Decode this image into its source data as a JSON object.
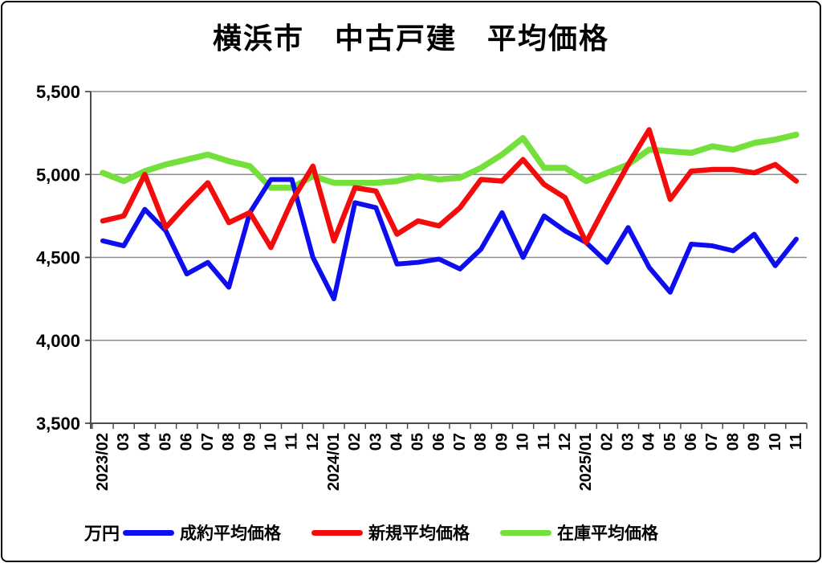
{
  "chart_data": {
    "type": "line",
    "title": "横浜市　中古戸建　平均価格",
    "unit_label": "万円",
    "legend_position": "bottom",
    "grid": true,
    "y_axis": {
      "min": 3500,
      "max": 5500,
      "ticks": [
        {
          "label": "5,500",
          "value": 5500
        },
        {
          "label": "5,000",
          "value": 5000
        },
        {
          "label": "4,500",
          "value": 4500
        },
        {
          "label": "4,000",
          "value": 4000
        },
        {
          "label": "3,500",
          "value": 3500
        }
      ]
    },
    "categories": [
      "2023/02",
      "03",
      "04",
      "05",
      "06",
      "07",
      "08",
      "09",
      "10",
      "11",
      "12",
      "2024/01",
      "02",
      "03",
      "04",
      "05",
      "06",
      "07",
      "08",
      "09",
      "10",
      "11",
      "12",
      "2025/01",
      "02",
      "03",
      "04",
      "05",
      "06",
      "07",
      "08",
      "09",
      "10",
      "11"
    ],
    "series": [
      {
        "name": "成約平均価格",
        "color": "#0D0DF0",
        "values": [
          4600,
          4570,
          4790,
          4660,
          4400,
          4470,
          4320,
          4770,
          4970,
          4970,
          4500,
          4250,
          4830,
          4800,
          4460,
          4470,
          4490,
          4430,
          4550,
          4770,
          4500,
          4750,
          4660,
          4590,
          4470,
          4680,
          4440,
          4290,
          4580,
          4570,
          4540,
          4640,
          4450,
          4610
        ]
      },
      {
        "name": "新規平均価格",
        "color": "#F40B0B",
        "values": [
          4720,
          4750,
          5000,
          4680,
          4820,
          4950,
          4710,
          4770,
          4560,
          4840,
          5050,
          4600,
          4920,
          4900,
          4640,
          4720,
          4690,
          4800,
          4970,
          4960,
          5090,
          4940,
          4860,
          4590,
          4830,
          5060,
          5270,
          4850,
          5020,
          5030,
          5030,
          5010,
          5060,
          4960
        ]
      },
      {
        "name": "在庫平均価格",
        "color": "#74E03C",
        "values": [
          5010,
          4960,
          5020,
          5060,
          5090,
          5120,
          5080,
          5050,
          4920,
          4920,
          4990,
          4950,
          4950,
          4950,
          4960,
          4990,
          4970,
          4980,
          5040,
          5120,
          5220,
          5040,
          5040,
          4960,
          5010,
          5060,
          5150,
          5140,
          5130,
          5170,
          5150,
          5190,
          5210,
          5240
        ]
      }
    ],
    "colors": {
      "gridline": "#8C8C8C",
      "axis": "#4D4D4D",
      "label": "#000000",
      "background": "#FFFFFF"
    }
  }
}
